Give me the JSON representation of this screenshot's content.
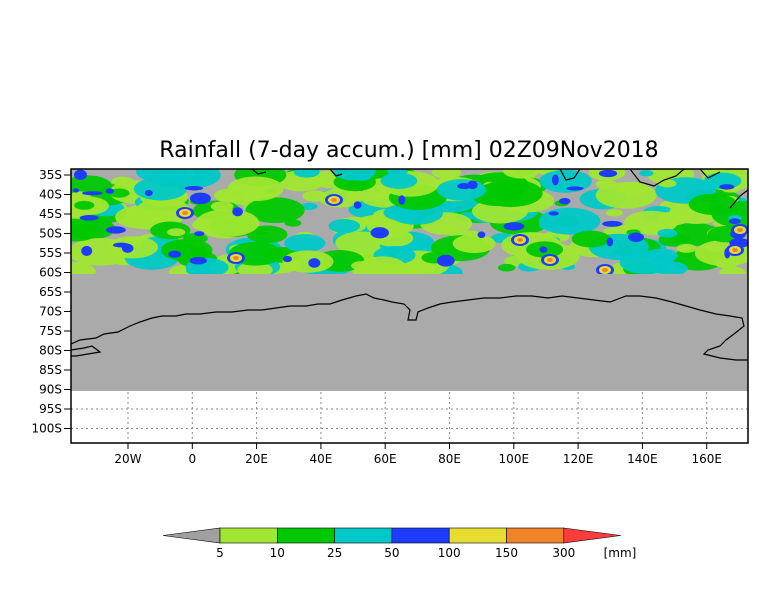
{
  "map": {
    "title": "Rainfall (7-day accum.) [mm] 02Z09Nov2018",
    "lat_labels": [
      "35S",
      "40S",
      "45S",
      "50S",
      "55S",
      "60S",
      "65S",
      "70S",
      "75S",
      "80S",
      "85S",
      "90S",
      "95S",
      "100S"
    ],
    "lon_labels": [
      "20W",
      "0",
      "20E",
      "40E",
      "60E",
      "80E",
      "100E",
      "120E",
      "140E",
      "160E"
    ],
    "no_data_color": "#aaaaaa"
  },
  "legend": {
    "unit": "[mm]",
    "thresholds": [
      "5",
      "10",
      "25",
      "50",
      "100",
      "150",
      "300"
    ],
    "colors": [
      "#a0a0a0",
      "#a0e632",
      "#00c800",
      "#00c8c8",
      "#1e3cff",
      "#e6dc32",
      "#f08228",
      "#fa3c3c"
    ]
  }
}
